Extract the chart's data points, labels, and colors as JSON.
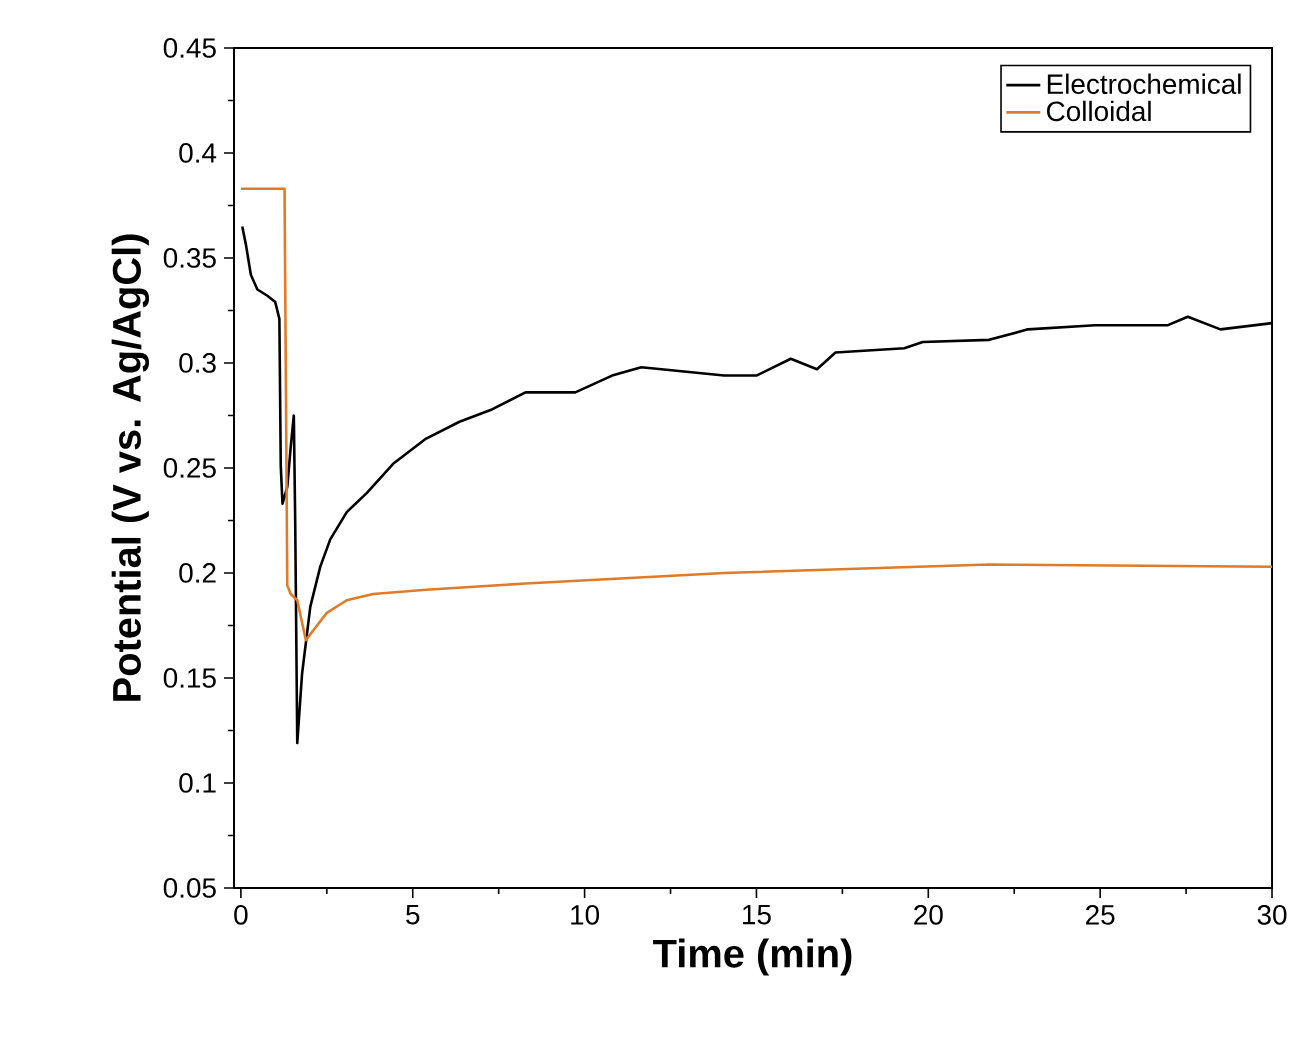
{
  "chart_data": {
    "type": "line",
    "xlabel": "Time (min)",
    "ylabel": "Potential (V vs. Ag/AgCl)",
    "xlim": [
      -0.2,
      30
    ],
    "ylim": [
      0.05,
      0.45
    ],
    "xticks": [
      0,
      5,
      10,
      15,
      20,
      25,
      30
    ],
    "yticks": [
      0.05,
      0.1,
      0.15,
      0.2,
      0.25,
      0.3,
      0.35,
      0.4,
      0.45
    ],
    "grid": false,
    "legend": "top right",
    "marker": "none",
    "line_style": "solid",
    "series": [
      {
        "name": "Electrochemical",
        "color": "#000000",
        "x": [
          0.04,
          0.15,
          0.29,
          0.48,
          0.77,
          1.0,
          1.12,
          1.16,
          1.21,
          1.35,
          1.45,
          1.54,
          1.58,
          1.64,
          1.78,
          2.02,
          2.31,
          2.6,
          3.08,
          3.66,
          4.43,
          5.39,
          6.36,
          7.32,
          8.28,
          9.73,
          10.8,
          11.65,
          14.06,
          15.0,
          16.0,
          16.76,
          17.3,
          19.3,
          19.84,
          21.77,
          22.9,
          24.85,
          26.97,
          27.55,
          28.5,
          30
        ],
        "values": [
          0.365,
          0.356,
          0.342,
          0.335,
          0.332,
          0.329,
          0.321,
          0.251,
          0.233,
          0.241,
          0.26,
          0.275,
          0.225,
          0.119,
          0.152,
          0.184,
          0.203,
          0.216,
          0.229,
          0.238,
          0.252,
          0.264,
          0.272,
          0.278,
          0.286,
          0.286,
          0.294,
          0.298,
          0.294,
          0.294,
          0.302,
          0.297,
          0.305,
          0.307,
          0.31,
          0.311,
          0.316,
          0.318,
          0.318,
          0.322,
          0.316,
          0.319
        ]
      },
      {
        "name": "Colloidal",
        "color": "#e07b28",
        "x": [
          0,
          1.27,
          1.31,
          1.35,
          1.45,
          1.64,
          1.89,
          2.12,
          2.5,
          3.08,
          3.85,
          5.39,
          8.28,
          14.06,
          21.77,
          30
        ],
        "values": [
          0.383,
          0.383,
          0.289,
          0.194,
          0.19,
          0.187,
          0.168,
          0.173,
          0.181,
          0.187,
          0.19,
          0.192,
          0.195,
          0.2,
          0.204,
          0.203
        ]
      }
    ]
  }
}
